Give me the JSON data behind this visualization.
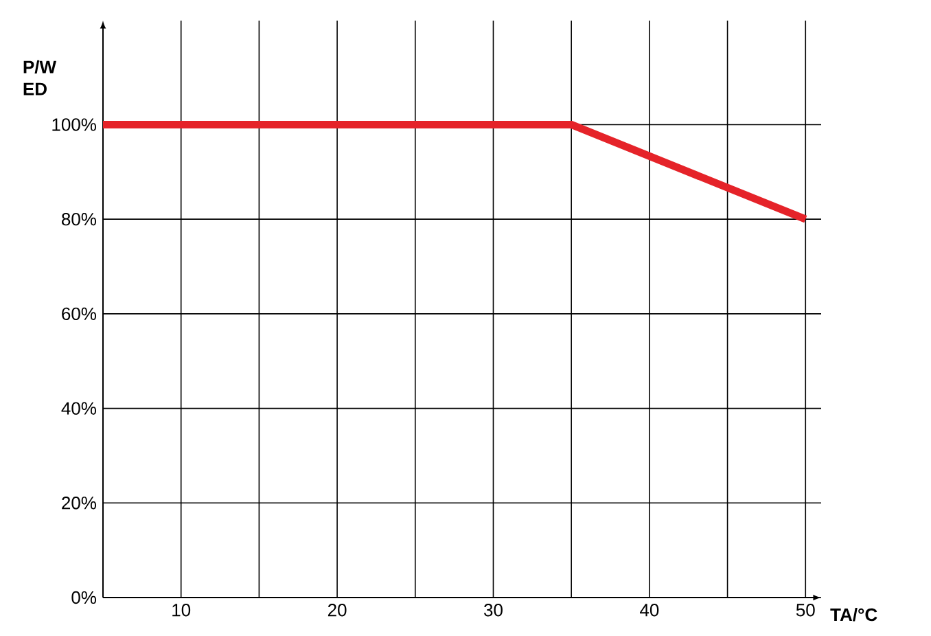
{
  "chart_data": {
    "type": "line",
    "xlabel": "TA/°C",
    "ylabel": "P/W ED",
    "x": [
      5,
      35,
      50
    ],
    "series": [
      {
        "color": "#e52329",
        "values": [
          100,
          100,
          80
        ]
      }
    ],
    "xlim": [
      5,
      51
    ],
    "ylim": [
      0,
      122
    ],
    "xticks": [
      10,
      {
        "value": 15,
        "label": null
      },
      20,
      {
        "value": 25,
        "label": null
      },
      30,
      {
        "value": 35,
        "label": null
      },
      40,
      {
        "value": 45,
        "label": null
      },
      50
    ],
    "yticks": [
      {
        "value": 0,
        "label": "0%"
      },
      {
        "value": 20,
        "label": "20%"
      },
      {
        "value": 40,
        "label": "40%"
      },
      {
        "value": 60,
        "label": "60%"
      },
      {
        "value": 80,
        "label": "80%"
      },
      {
        "value": 100,
        "label": "100%"
      }
    ],
    "grid": true,
    "marker": "none",
    "line_style": "solid"
  }
}
